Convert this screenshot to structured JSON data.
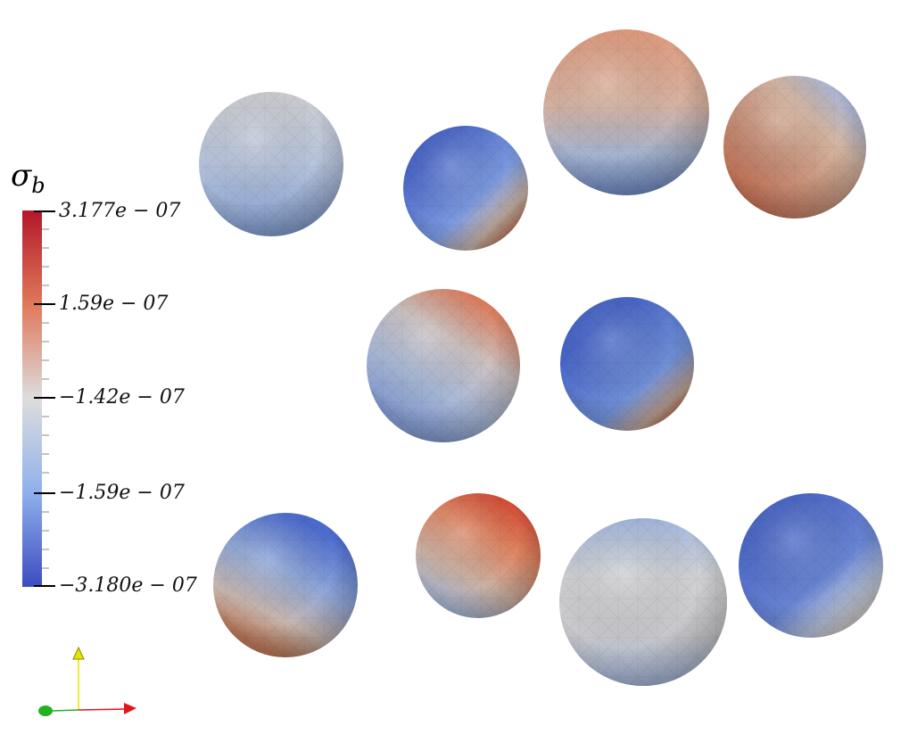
{
  "colorbar": {
    "title_symbol": "σ",
    "title_subscript": "b",
    "ticks": [
      {
        "label": "3.177e − 07",
        "value": 3.177e-07
      },
      {
        "label": "1.59e − 07",
        "value": 1.59e-07
      },
      {
        "label": "−1.42e − 07",
        "value": -1.42e-07
      },
      {
        "label": "−1.59e − 07",
        "value": -1.59e-07
      },
      {
        "label": "−3.180e − 07",
        "value": -3.18e-07
      }
    ],
    "colormap": [
      "#b2182b",
      "#e0785a",
      "#dddddd",
      "#8fb0ec",
      "#3b4cc0"
    ]
  },
  "axes_widget": {
    "x_color": "#e3161c",
    "y_color": "#e6e600",
    "z_color": "#22b21f"
  }
}
